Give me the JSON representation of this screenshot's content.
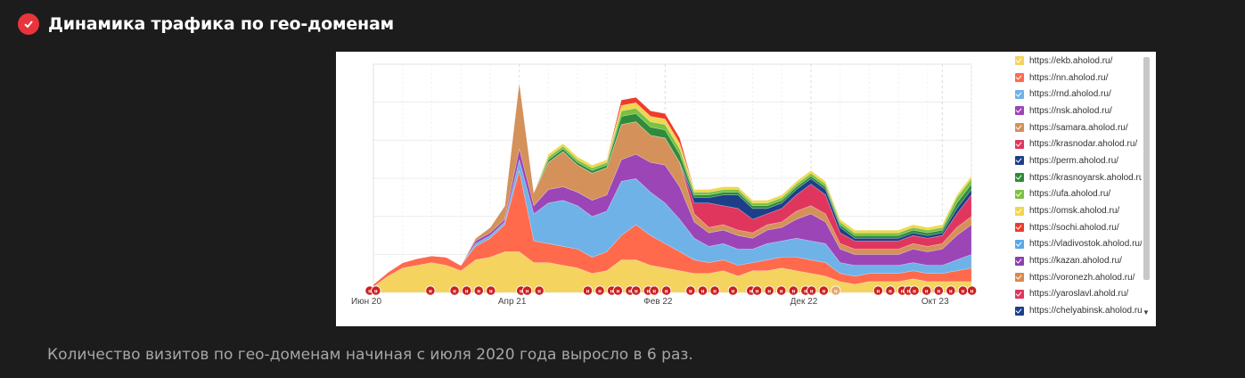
{
  "header": {
    "title": "Динамика трафика по гео-доменам",
    "icon": "check-circle-icon",
    "icon_color": "#e8343c"
  },
  "caption": "Количество визитов по гео-доменам начиная с июля 2020 года выросло в 6 раз.",
  "chart_data": {
    "type": "area",
    "stacked": true,
    "title": "",
    "xlabel": "",
    "ylabel": "",
    "grid": true,
    "legend_position": "right",
    "x_ticks": [
      "Июн 20",
      "Апр 21",
      "Фев 22",
      "Дек 22",
      "Окт 23"
    ],
    "series": [
      {
        "name": "https://ekb.aholod.ru/",
        "color": "#f4d35e",
        "values": [
          4,
          12,
          18,
          20,
          22,
          20,
          16,
          24,
          26,
          30,
          30,
          22,
          22,
          20,
          18,
          14,
          16,
          24,
          24,
          20,
          18,
          16,
          14,
          14,
          16,
          12,
          16,
          16,
          18,
          16,
          14,
          12,
          8,
          6,
          8,
          8,
          8,
          10,
          8,
          8,
          8,
          8
        ]
      },
      {
        "name": "https://nn.aholod.ru/",
        "color": "#ff6a4d",
        "values": [
          2,
          3,
          4,
          5,
          5,
          6,
          4,
          10,
          14,
          20,
          60,
          16,
          14,
          14,
          14,
          12,
          14,
          18,
          26,
          22,
          18,
          14,
          10,
          8,
          8,
          8,
          6,
          8,
          8,
          10,
          10,
          10,
          6,
          6,
          6,
          6,
          6,
          6,
          6,
          6,
          8,
          10
        ]
      },
      {
        "name": "https://rnd.aholod.ru/",
        "color": "#6fb2e8",
        "values": [
          0,
          0,
          0,
          0,
          0,
          0,
          0,
          2,
          2,
          2,
          8,
          20,
          30,
          34,
          32,
          30,
          30,
          40,
          34,
          32,
          30,
          24,
          16,
          12,
          12,
          12,
          10,
          12,
          12,
          14,
          14,
          14,
          8,
          8,
          6,
          6,
          6,
          6,
          6,
          6,
          8,
          10
        ]
      },
      {
        "name": "https://nsk.aholod.ru/",
        "color": "#9b45b7",
        "values": [
          0,
          0,
          0,
          0,
          0,
          0,
          0,
          2,
          2,
          2,
          8,
          6,
          10,
          10,
          10,
          12,
          12,
          16,
          18,
          22,
          28,
          24,
          12,
          10,
          10,
          10,
          8,
          10,
          10,
          14,
          20,
          16,
          10,
          8,
          8,
          8,
          8,
          10,
          10,
          12,
          18,
          22
        ]
      },
      {
        "name": "https://samara.aholod.ru/",
        "color": "#d4915a",
        "values": [
          0,
          0,
          0,
          0,
          0,
          0,
          0,
          2,
          4,
          10,
          50,
          10,
          20,
          26,
          20,
          20,
          20,
          26,
          24,
          20,
          20,
          18,
          6,
          4,
          4,
          4,
          4,
          4,
          4,
          6,
          6,
          6,
          4,
          4,
          4,
          4,
          4,
          4,
          4,
          4,
          6,
          6
        ]
      },
      {
        "name": "https://krasnodar.aholod.ru/",
        "color": "#e0365e",
        "values": [
          0,
          0,
          0,
          0,
          0,
          0,
          0,
          0,
          0,
          0,
          0,
          0,
          0,
          0,
          0,
          0,
          0,
          0,
          0,
          0,
          0,
          0,
          8,
          18,
          14,
          16,
          10,
          8,
          10,
          12,
          16,
          14,
          8,
          6,
          6,
          6,
          6,
          6,
          6,
          6,
          10,
          16
        ]
      },
      {
        "name": "https://perm.aholod.ru/",
        "color": "#1d3f8a",
        "values": [
          0,
          0,
          0,
          0,
          0,
          0,
          0,
          0,
          0,
          0,
          0,
          0,
          0,
          0,
          0,
          0,
          0,
          0,
          0,
          0,
          0,
          0,
          4,
          4,
          8,
          10,
          8,
          4,
          4,
          4,
          4,
          4,
          4,
          2,
          2,
          2,
          2,
          2,
          2,
          2,
          4,
          4
        ]
      },
      {
        "name": "https://krasnoyarsk.aholod.ru/",
        "color": "#2e8b3a",
        "values": [
          0,
          0,
          0,
          0,
          0,
          0,
          0,
          0,
          0,
          0,
          0,
          0,
          2,
          2,
          2,
          2,
          2,
          6,
          6,
          6,
          6,
          6,
          2,
          2,
          2,
          2,
          2,
          2,
          2,
          2,
          2,
          2,
          2,
          2,
          2,
          2,
          2,
          2,
          2,
          2,
          4,
          4
        ]
      },
      {
        "name": "https://ufa.aholod.ru/",
        "color": "#7cc142",
        "values": [
          0,
          0,
          0,
          0,
          0,
          0,
          0,
          0,
          0,
          0,
          0,
          0,
          2,
          2,
          2,
          2,
          2,
          4,
          4,
          4,
          4,
          4,
          2,
          2,
          2,
          2,
          2,
          2,
          2,
          2,
          2,
          2,
          2,
          2,
          2,
          2,
          2,
          2,
          2,
          2,
          4,
          4
        ]
      },
      {
        "name": "https://omsk.aholod.ru/",
        "color": "#f2d64b",
        "values": [
          0,
          0,
          0,
          0,
          0,
          0,
          0,
          0,
          0,
          0,
          0,
          0,
          2,
          2,
          2,
          2,
          2,
          4,
          4,
          4,
          4,
          4,
          2,
          2,
          2,
          2,
          2,
          2,
          2,
          2,
          2,
          2,
          2,
          2,
          2,
          2,
          2,
          2,
          2,
          2,
          2,
          2
        ]
      },
      {
        "name": "https://sochi.aholod.ru/",
        "color": "#ef3b2c",
        "values": [
          0,
          0,
          0,
          0,
          0,
          0,
          0,
          0,
          0,
          0,
          0,
          0,
          0,
          0,
          0,
          0,
          0,
          4,
          4,
          4,
          4,
          4,
          0,
          0,
          0,
          0,
          0,
          0,
          0,
          0,
          0,
          0,
          0,
          0,
          0,
          0,
          0,
          0,
          0,
          0,
          0,
          0
        ]
      },
      {
        "name": "https://vladivostok.aholod.ru/",
        "color": "#5aa9e6",
        "values": []
      },
      {
        "name": "https://kazan.aholod.ru/",
        "color": "#8e3fb0",
        "values": []
      },
      {
        "name": "https://voronezh.aholod.ru/",
        "color": "#d88a4e",
        "values": []
      },
      {
        "name": "https://yaroslavl.ahold.ru/",
        "color": "#e0365e",
        "values": []
      },
      {
        "name": "https://chelyabinsk.aholod.ru/",
        "color": "#1d3f8a",
        "values": []
      }
    ],
    "annotation_markers": {
      "color": "#cc1f1f",
      "letter": "н",
      "count": 42
    }
  }
}
